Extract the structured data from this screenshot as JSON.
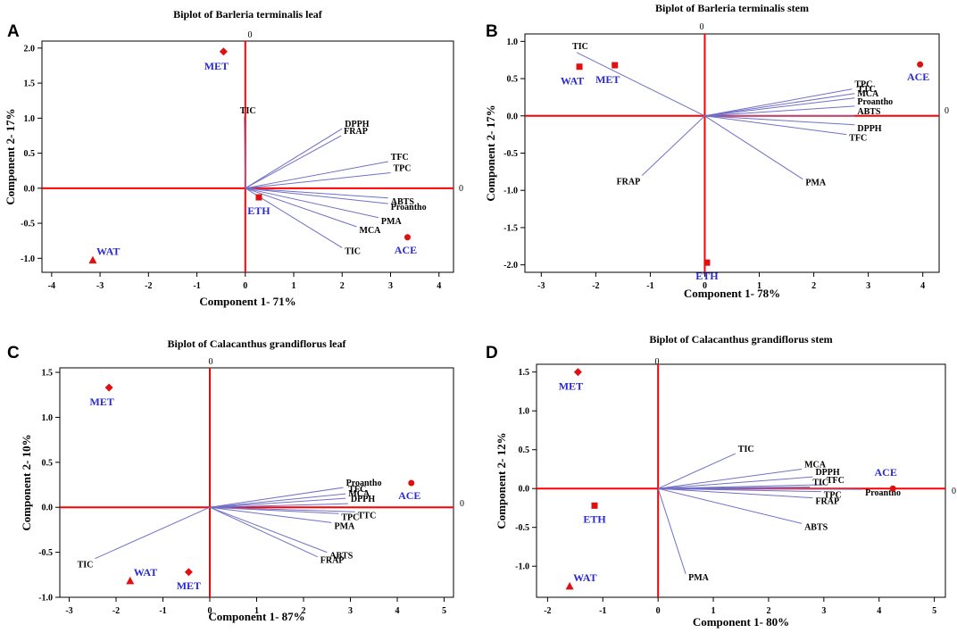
{
  "figure": {
    "colors": {
      "axis_zero": "#ff0000",
      "loading": "#7070c8",
      "group_label": "#2a2ad0",
      "marker": "#e01010"
    }
  },
  "chart_data": [
    {
      "type": "scatter",
      "panel_letter": "A",
      "title": "Biplot of Barleria terminalis leaf",
      "xlabel": "Component 1- 71%",
      "ylabel": "Component 2- 17%",
      "xlim": [
        -4.2,
        4.3
      ],
      "ylim": [
        -1.2,
        2.1
      ],
      "xticks": [
        -4,
        -3,
        -2,
        -1,
        0,
        1,
        2,
        3,
        4
      ],
      "yticks": [
        -1.0,
        -0.5,
        0.0,
        0.5,
        1.0,
        1.5,
        2.0
      ],
      "ytick_labels": [
        "-1.0",
        "-0.5",
        "0.0",
        "0.5",
        "1.0",
        "1.5",
        "2.0"
      ],
      "zero_label": "0",
      "loadings": [
        {
          "label": "TIC",
          "x": -0.02,
          "y": 1.02
        },
        {
          "label": "DPPH",
          "x": 2.0,
          "y": 0.85
        },
        {
          "label": "FRAP",
          "x": 1.98,
          "y": 0.75
        },
        {
          "label": "TFC",
          "x": 2.95,
          "y": 0.38
        },
        {
          "label": "TPC",
          "x": 3.0,
          "y": 0.22
        },
        {
          "label": "ABTS",
          "x": 2.95,
          "y": -0.14
        },
        {
          "label": "Proantho",
          "x": 2.95,
          "y": -0.22
        },
        {
          "label": "PMA",
          "x": 2.75,
          "y": -0.42
        },
        {
          "label": "MCA",
          "x": 2.3,
          "y": -0.55
        },
        {
          "label": "TIC",
          "x": 2.0,
          "y": -0.85
        }
      ],
      "groups": [
        {
          "label": "MET",
          "marker": "diamond",
          "x": -0.45,
          "y": 1.95
        },
        {
          "label": "ETH",
          "marker": "square",
          "x": 0.28,
          "y": -0.13
        },
        {
          "label": "WAT",
          "marker": "triangle",
          "x": -3.15,
          "y": -1.03
        },
        {
          "label": "ACE",
          "marker": "circle",
          "x": 3.35,
          "y": -0.7
        }
      ]
    },
    {
      "type": "scatter",
      "panel_letter": "B",
      "title": "Biplot of Barleria terminalis stem",
      "xlabel": "Component 1- 78%",
      "ylabel": "Component 2- 17%",
      "xlim": [
        -3.3,
        4.3
      ],
      "ylim": [
        -2.1,
        1.1
      ],
      "xticks": [
        -3,
        -2,
        -1,
        0,
        1,
        2,
        3,
        4
      ],
      "yticks": [
        -2.0,
        -1.5,
        -1.0,
        -0.5,
        0.0,
        0.5,
        1.0
      ],
      "ytick_labels": [
        "-2.0",
        "-1.5",
        "-1.0",
        "-0.5",
        "0.0",
        "0.5",
        "1.0"
      ],
      "zero_label": "0",
      "loadings": [
        {
          "label": "TIC",
          "x": -2.35,
          "y": 0.85
        },
        {
          "label": "TPC",
          "x": 2.7,
          "y": 0.36
        },
        {
          "label": "TTC",
          "x": 2.75,
          "y": 0.3
        },
        {
          "label": "MCA",
          "x": 2.75,
          "y": 0.24
        },
        {
          "label": "Proantho",
          "x": 2.75,
          "y": 0.13
        },
        {
          "label": "ABTS",
          "x": 2.75,
          "y": 0.0
        },
        {
          "label": "DPPH",
          "x": 2.75,
          "y": -0.12
        },
        {
          "label": "TFC",
          "x": 2.6,
          "y": -0.25
        },
        {
          "label": "FRAP",
          "x": -1.15,
          "y": -0.8
        },
        {
          "label": "PMA",
          "x": 1.8,
          "y": -0.85
        }
      ],
      "groups": [
        {
          "label": "MET",
          "marker": "square",
          "x": -1.65,
          "y": 0.68
        },
        {
          "label": "WAT",
          "marker": "square",
          "x": -2.3,
          "y": 0.66
        },
        {
          "label": "ACE",
          "marker": "circle",
          "x": 3.95,
          "y": 0.69
        },
        {
          "label": "ETH",
          "marker": "square",
          "x": 0.04,
          "y": -1.97
        }
      ]
    },
    {
      "type": "scatter",
      "panel_letter": "C",
      "title": "Biplot of Calacanthus grandiflorus leaf",
      "xlabel": "Component 1- 87%",
      "ylabel": "Component 2- 10%",
      "xlim": [
        -3.2,
        5.2
      ],
      "ylim": [
        -1.0,
        1.55
      ],
      "xticks": [
        -3,
        -2,
        -1,
        0,
        1,
        2,
        3,
        4,
        5
      ],
      "yticks": [
        -1.0,
        -0.5,
        0.0,
        0.5,
        1.0,
        1.5
      ],
      "ytick_labels": [
        "-1.0",
        "-0.5",
        "0.0",
        "0.5",
        "1.0",
        "1.5"
      ],
      "zero_label": "0",
      "loadings": [
        {
          "label": "Proantho",
          "x": 2.85,
          "y": 0.22
        },
        {
          "label": "TFC",
          "x": 2.9,
          "y": 0.15
        },
        {
          "label": "MCA",
          "x": 2.9,
          "y": 0.1
        },
        {
          "label": "DPPH",
          "x": 2.95,
          "y": 0.04
        },
        {
          "label": "TTC",
          "x": 3.1,
          "y": -0.05
        },
        {
          "label": "TPC",
          "x": 2.75,
          "y": -0.07
        },
        {
          "label": "PMA",
          "x": 2.6,
          "y": -0.17
        },
        {
          "label": "ABTS",
          "x": 2.5,
          "y": -0.5
        },
        {
          "label": "FRAP",
          "x": 2.3,
          "y": -0.55
        },
        {
          "label": "TIC",
          "x": -2.45,
          "y": -0.57
        }
      ],
      "groups": [
        {
          "label": "MET",
          "marker": "diamond",
          "x": -2.15,
          "y": 1.33
        },
        {
          "label": "ACE",
          "marker": "circle",
          "x": 4.3,
          "y": 0.27
        },
        {
          "label": "WAT",
          "marker": "triangle",
          "x": -1.7,
          "y": -0.82
        },
        {
          "label": "MET",
          "marker": "diamond",
          "x": -0.45,
          "y": -0.72
        }
      ]
    },
    {
      "type": "scatter",
      "panel_letter": "D",
      "title": "Biplot of Calacanthus grandiflorus stem",
      "xlabel": "Component 1- 80%",
      "ylabel": "Component 2- 12%",
      "xlim": [
        -2.2,
        5.2
      ],
      "ylim": [
        -1.4,
        1.6
      ],
      "xticks": [
        -2,
        -1,
        0,
        1,
        2,
        3,
        4,
        5
      ],
      "yticks": [
        -1.0,
        -0.5,
        0.0,
        0.5,
        1.0,
        1.5
      ],
      "ytick_labels": [
        "-1.0",
        "-0.5",
        "0.0",
        "0.5",
        "1.0",
        "1.5"
      ],
      "zero_label": "0",
      "loadings": [
        {
          "label": "TIC",
          "x": 1.4,
          "y": 0.45
        },
        {
          "label": "MCA",
          "x": 2.6,
          "y": 0.25
        },
        {
          "label": "DPPH",
          "x": 2.8,
          "y": 0.15
        },
        {
          "label": "TFC",
          "x": 3.0,
          "y": 0.05
        },
        {
          "label": "TIC",
          "x": 2.75,
          "y": 0.02
        },
        {
          "label": "TPC",
          "x": 2.95,
          "y": -0.04
        },
        {
          "label": "Proantho",
          "x": 3.7,
          "y": -0.01
        },
        {
          "label": "FRAP",
          "x": 2.8,
          "y": -0.12
        },
        {
          "label": "ABTS",
          "x": 2.6,
          "y": -0.45
        },
        {
          "label": "PMA",
          "x": 0.5,
          "y": -1.1
        }
      ],
      "groups": [
        {
          "label": "MET",
          "marker": "diamond",
          "x": -1.45,
          "y": 1.5
        },
        {
          "label": "ACE",
          "marker": "circle",
          "x": 4.25,
          "y": 0.0
        },
        {
          "label": "ETH",
          "marker": "square",
          "x": -1.15,
          "y": -0.22
        },
        {
          "label": "WAT",
          "marker": "triangle",
          "x": -1.6,
          "y": -1.26
        }
      ]
    }
  ]
}
